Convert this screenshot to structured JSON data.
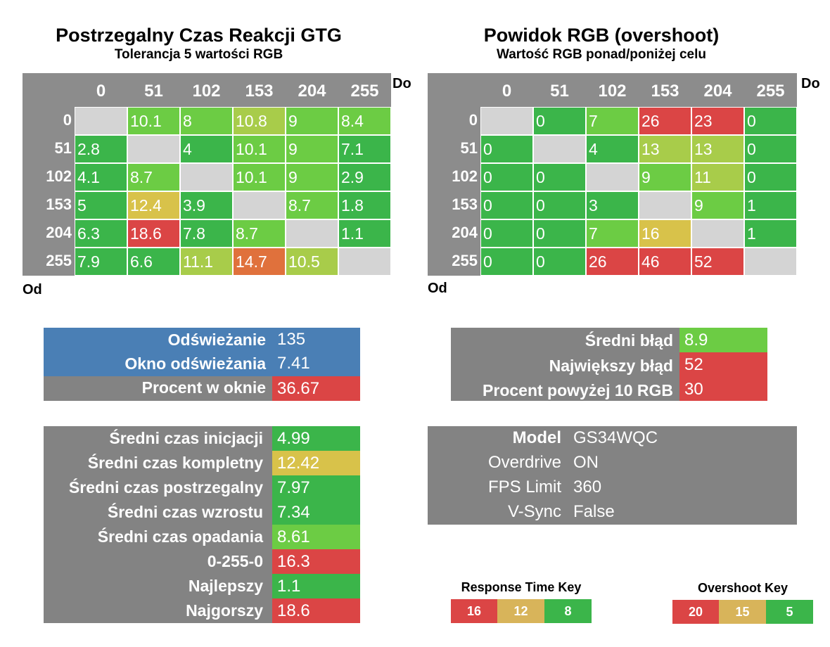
{
  "colors": {
    "green": "#3bb54a",
    "light_green": "#6ccc44",
    "yellow_green": "#a8cc4a",
    "yellow": "#d8c24a",
    "orange": "#e0713c",
    "red": "#db4545",
    "gray_header": "#8c8c8c",
    "gray_panel": "#838383",
    "diag": "#d4d4d4",
    "blue": "#4a7fb5"
  },
  "left_chart": {
    "title": "Postrzegalny Czas Reakcji GTG",
    "subtitle": "Tolerancja 5 wartości RGB",
    "to_label": "Do",
    "from_label": "Od"
  },
  "right_chart": {
    "title": "Powidok RGB (overshoot)",
    "subtitle": "Wartość RGB ponad/poniżej celu",
    "to_label": "Do",
    "from_label": "Od"
  },
  "chart_data": [
    {
      "type": "heatmap",
      "title": "Postrzegalny Czas Reakcji GTG",
      "subtitle": "Tolerancja 5 wartości RGB",
      "xlabel": "Do",
      "ylabel": "Od",
      "x_categories": [
        "0",
        "51",
        "102",
        "153",
        "204",
        "255"
      ],
      "y_categories": [
        "0",
        "51",
        "102",
        "153",
        "204",
        "255"
      ],
      "values": [
        [
          null,
          "10.1",
          "8",
          "10.8",
          "9",
          "8.4"
        ],
        [
          "2.8",
          null,
          "4",
          "10.1",
          "9",
          "7.1"
        ],
        [
          "4.1",
          "8.7",
          null,
          "10.1",
          "9",
          "2.9"
        ],
        [
          "5",
          "12.4",
          "3.9",
          null,
          "8.7",
          "1.8"
        ],
        [
          "6.3",
          "18.6",
          "7.8",
          "8.7",
          null,
          "1.1"
        ],
        [
          "7.9",
          "6.6",
          "11.1",
          "14.7",
          "10.5",
          null
        ]
      ],
      "color_key": "response"
    },
    {
      "type": "heatmap",
      "title": "Powidok RGB (overshoot)",
      "subtitle": "Wartość RGB ponad/poniżej celu",
      "xlabel": "Do",
      "ylabel": "Od",
      "x_categories": [
        "0",
        "51",
        "102",
        "153",
        "204",
        "255"
      ],
      "y_categories": [
        "0",
        "51",
        "102",
        "153",
        "204",
        "255"
      ],
      "values": [
        [
          null,
          "0",
          "7",
          "26",
          "23",
          "0"
        ],
        [
          "0",
          null,
          "4",
          "13",
          "13",
          "0"
        ],
        [
          "0",
          "0",
          null,
          "9",
          "11",
          "0"
        ],
        [
          "0",
          "0",
          "3",
          null,
          "9",
          "1"
        ],
        [
          "0",
          "0",
          "7",
          "16",
          null,
          "1"
        ],
        [
          "0",
          "0",
          "26",
          "46",
          "52",
          null
        ]
      ],
      "color_key": "overshoot"
    }
  ],
  "refresh_panel": {
    "rows": [
      {
        "label": "Odświeżanie",
        "value": "135"
      },
      {
        "label": "Okno odświeżania",
        "value": "7.41"
      },
      {
        "label": "Procent w oknie",
        "value": "36.67"
      }
    ]
  },
  "error_panel": {
    "rows": [
      {
        "label": "Średni błąd",
        "value": "8.9"
      },
      {
        "label": "Największy błąd",
        "value": "52"
      },
      {
        "label": "Procent powyżej 10 RGB",
        "value": "30"
      }
    ]
  },
  "times_panel": {
    "rows": [
      {
        "label": "Średni czas inicjacji",
        "value": "4.99"
      },
      {
        "label": "Średni czas kompletny",
        "value": "12.42"
      },
      {
        "label": "Średni czas postrzegalny",
        "value": "7.97"
      },
      {
        "label": "Średni czas wzrostu",
        "value": "7.34"
      },
      {
        "label": "Średni czas opadania",
        "value": "8.61"
      },
      {
        "label": "0-255-0",
        "value": "16.3"
      },
      {
        "label": "Najlepszy",
        "value": "1.1"
      },
      {
        "label": "Najgorszy",
        "value": "18.6"
      }
    ]
  },
  "info_panel": {
    "rows": [
      {
        "label": "Model",
        "value": "GS34WQC"
      },
      {
        "label": "Overdrive",
        "value": "ON"
      },
      {
        "label": "FPS Limit",
        "value": "360"
      },
      {
        "label": "V-Sync",
        "value": "False"
      }
    ]
  },
  "response_key": {
    "title": "Response Time Key",
    "items": [
      "16",
      "12",
      "8"
    ]
  },
  "overshoot_key": {
    "title": "Overshoot Key",
    "items": [
      "20",
      "15",
      "5"
    ]
  }
}
